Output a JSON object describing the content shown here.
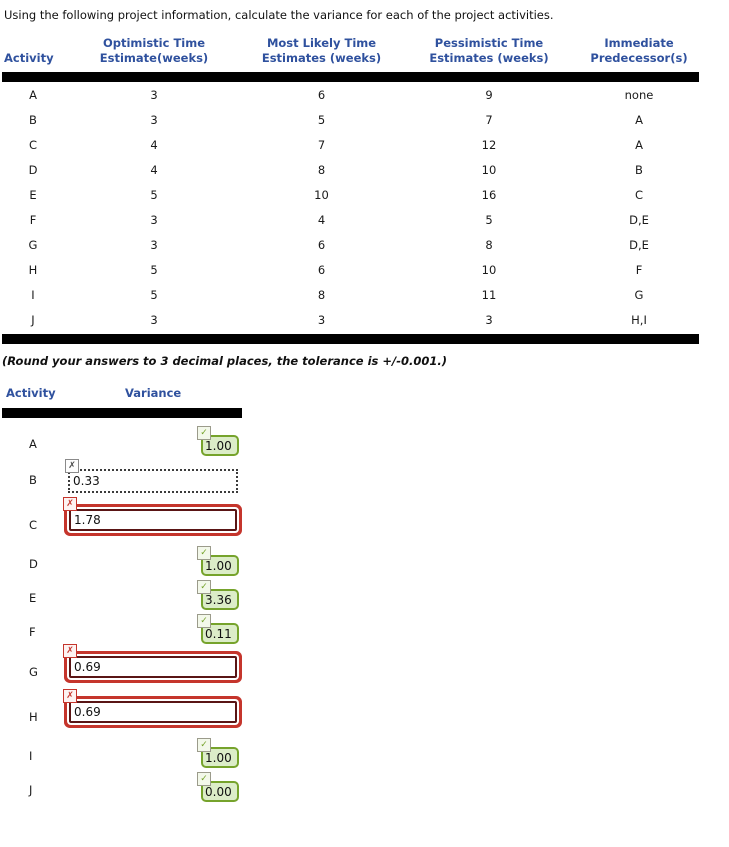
{
  "prompt": "Using the following project information, calculate the variance for each of the project activities.",
  "round_note": "(Round your answers to 3 decimal places, the tolerance is +/-0.001.)",
  "colors": {
    "header_blue": "#2F519E",
    "correct_border": "#76A32C",
    "correct_fill": "#DCEDC8",
    "incorrect_red": "#C5352C",
    "bar_black": "#000000"
  },
  "icons": {
    "check": "✓",
    "cross": "✗"
  },
  "info_table": {
    "headers": [
      "Activity",
      "Optimistic Time Estimate(weeks)",
      "Most Likely Time Estimates (weeks)",
      "Pessimistic Time Estimates (weeks)",
      "Immediate Predecessor(s)"
    ],
    "rows": [
      {
        "activity": "A",
        "optimistic": "3",
        "most_likely": "6",
        "pessimistic": "9",
        "predecessor": "none"
      },
      {
        "activity": "B",
        "optimistic": "3",
        "most_likely": "5",
        "pessimistic": "7",
        "predecessor": "A"
      },
      {
        "activity": "C",
        "optimistic": "4",
        "most_likely": "7",
        "pessimistic": "12",
        "predecessor": "A"
      },
      {
        "activity": "D",
        "optimistic": "4",
        "most_likely": "8",
        "pessimistic": "10",
        "predecessor": "B"
      },
      {
        "activity": "E",
        "optimistic": "5",
        "most_likely": "10",
        "pessimistic": "16",
        "predecessor": "C"
      },
      {
        "activity": "F",
        "optimistic": "3",
        "most_likely": "4",
        "pessimistic": "5",
        "predecessor": "D,E"
      },
      {
        "activity": "G",
        "optimistic": "3",
        "most_likely": "6",
        "pessimistic": "8",
        "predecessor": "D,E"
      },
      {
        "activity": "H",
        "optimistic": "5",
        "most_likely": "6",
        "pessimistic": "10",
        "predecessor": "F"
      },
      {
        "activity": "I",
        "optimistic": "5",
        "most_likely": "8",
        "pessimistic": "11",
        "predecessor": "G"
      },
      {
        "activity": "J",
        "optimistic": "3",
        "most_likely": "3",
        "pessimistic": "3",
        "predecessor": "H,I"
      }
    ]
  },
  "answer_table": {
    "headers": [
      "Activity",
      "Variance"
    ],
    "rows": [
      {
        "activity": "A",
        "value": "1.00",
        "status": "correct"
      },
      {
        "activity": "B",
        "value": "0.33",
        "status": "incorrect-active"
      },
      {
        "activity": "C",
        "value": "1.78",
        "status": "incorrect"
      },
      {
        "activity": "D",
        "value": "1.00",
        "status": "correct"
      },
      {
        "activity": "E",
        "value": "3.36",
        "status": "correct"
      },
      {
        "activity": "F",
        "value": "0.11",
        "status": "correct"
      },
      {
        "activity": "G",
        "value": "0.69",
        "status": "incorrect"
      },
      {
        "activity": "H",
        "value": "0.69",
        "status": "incorrect"
      },
      {
        "activity": "I",
        "value": "1.00",
        "status": "correct"
      },
      {
        "activity": "J",
        "value": "0.00",
        "status": "correct"
      }
    ]
  }
}
